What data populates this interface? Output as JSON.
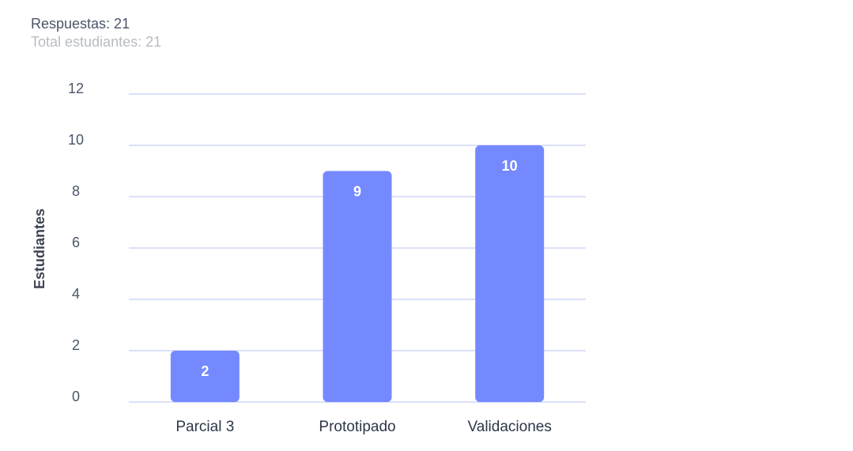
{
  "summary": {
    "responses": "Respuestas: 21",
    "total": "Total estudiantes: 21"
  },
  "colors": {
    "bar": "#7589ff",
    "grid": "#b7c0f5",
    "text": "#4a5568",
    "muted": "#b8bcc2"
  },
  "chart_data": {
    "type": "bar",
    "categories": [
      "Parcial 3",
      "Prototipado",
      "Validaciones"
    ],
    "values": [
      2,
      9,
      10
    ],
    "ylabel": "Estudiantes",
    "xlabel": "",
    "ylim": [
      0,
      12
    ],
    "yticks": [
      0,
      2,
      4,
      6,
      8,
      10,
      12
    ],
    "data_labels": [
      "2",
      "9",
      "10"
    ],
    "grid": true,
    "legend": "none"
  }
}
